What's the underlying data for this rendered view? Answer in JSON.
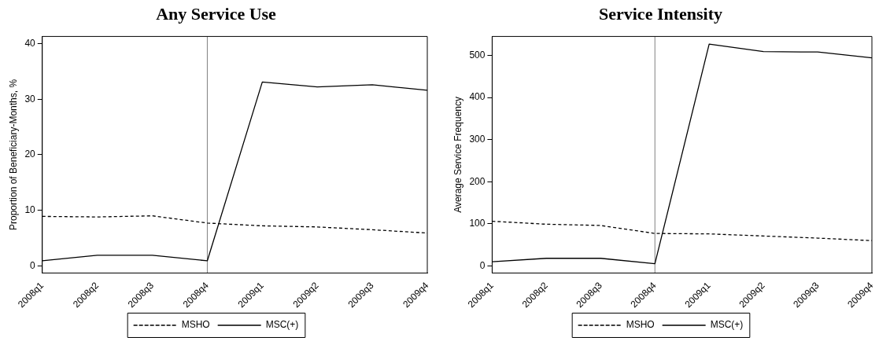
{
  "chart_data": [
    {
      "type": "line",
      "title": "Any Service Use",
      "ylabel": "Proportion of Beneficiary-Months, %",
      "categories": [
        "2008q1",
        "2008q2",
        "2008q3",
        "2008q4",
        "2009q1",
        "2009q2",
        "2009q3",
        "2009q4"
      ],
      "series": [
        {
          "name": "MSHO",
          "color": "#000000",
          "line_style": "dashed",
          "values": [
            8.9,
            8.8,
            9.0,
            7.7,
            7.2,
            7.0,
            6.5,
            5.9
          ]
        },
        {
          "name": "MSC(+)",
          "color": "#000000",
          "line_style": "solid",
          "values": [
            0.9,
            1.9,
            1.9,
            0.9,
            33.1,
            32.2,
            32.6,
            31.6
          ]
        }
      ],
      "ylim": [
        -1.3,
        41.3
      ],
      "yticks": [
        0,
        10,
        20,
        30,
        40
      ],
      "grid": false,
      "legend": "bottom",
      "marker": "none",
      "ref_lines": [
        {
          "axis": "x",
          "value": "2008q4",
          "color": "#808080"
        }
      ]
    },
    {
      "type": "line",
      "title": "Service Intensity",
      "ylabel": "Average Service Frequency",
      "categories": [
        "2008q1",
        "2008q2",
        "2008q3",
        "2008q4",
        "2009q1",
        "2009q2",
        "2009q3",
        "2009q4"
      ],
      "series": [
        {
          "name": "MSHO",
          "color": "#000000",
          "line_style": "dashed",
          "values": [
            106,
            99,
            96,
            77,
            76,
            71,
            66,
            60
          ]
        },
        {
          "name": "MSC(+)",
          "color": "#000000",
          "line_style": "solid",
          "values": [
            10,
            18,
            18,
            5,
            527,
            509,
            508,
            494
          ]
        }
      ],
      "ylim": [
        -17,
        545
      ],
      "yticks": [
        0,
        100,
        200,
        300,
        400,
        500
      ],
      "grid": false,
      "legend": "bottom",
      "marker": "none",
      "ref_lines": [
        {
          "axis": "x",
          "value": "2008q4",
          "color": "#808080"
        }
      ]
    }
  ]
}
